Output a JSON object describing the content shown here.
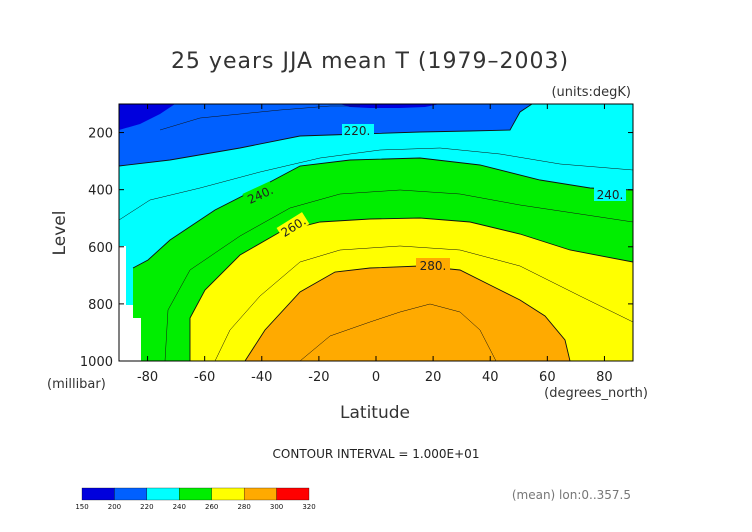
{
  "chart_data": {
    "type": "contour",
    "title": "25 years JJA mean T (1979–2003)",
    "units_label": "(units:degK)",
    "xlabel": "Latitude",
    "ylabel": "Level",
    "x_unit_label": "(degrees_north)",
    "y_unit_label": "(millibar)",
    "xlim": [
      -90,
      90
    ],
    "ylim": [
      1000,
      100
    ],
    "x_ticks": [
      "-80",
      "-60",
      "-40",
      "-20",
      "0",
      "20",
      "40",
      "60",
      "80"
    ],
    "y_ticks": [
      "200",
      "400",
      "600",
      "800",
      "1000"
    ],
    "contour_interval_text": "CONTOUR INTERVAL = 1.000E+01",
    "contour_labels": [
      "220.",
      "240.",
      "260.",
      "280.",
      "240."
    ],
    "colorbar": {
      "labels": [
        "150",
        "200",
        "220",
        "240",
        "260",
        "280",
        "300",
        "320"
      ],
      "colors": [
        "#0000dd",
        "#0060ff",
        "#00ffff",
        "#00ee00",
        "#ffff00",
        "#ffaa00",
        "#ff0000"
      ]
    },
    "footer": "(mean) lon:0..357.5"
  }
}
